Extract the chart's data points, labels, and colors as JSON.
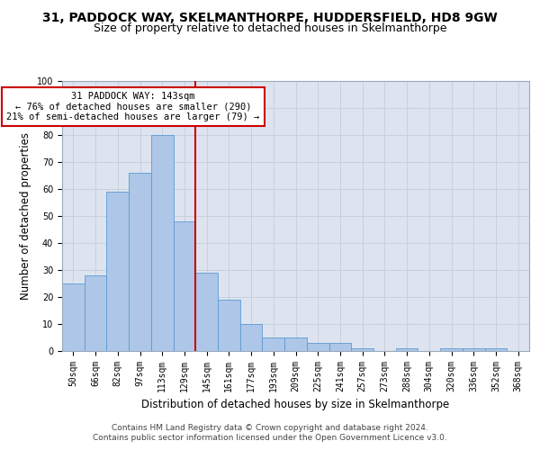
{
  "title_line1": "31, PADDOCK WAY, SKELMANTHORPE, HUDDERSFIELD, HD8 9GW",
  "title_line2": "Size of property relative to detached houses in Skelmanthorpe",
  "xlabel": "Distribution of detached houses by size in Skelmanthorpe",
  "ylabel": "Number of detached properties",
  "categories": [
    "50sqm",
    "66sqm",
    "82sqm",
    "97sqm",
    "113sqm",
    "129sqm",
    "145sqm",
    "161sqm",
    "177sqm",
    "193sqm",
    "209sqm",
    "225sqm",
    "241sqm",
    "257sqm",
    "273sqm",
    "288sqm",
    "304sqm",
    "320sqm",
    "336sqm",
    "352sqm",
    "368sqm"
  ],
  "values": [
    25,
    28,
    59,
    66,
    80,
    48,
    29,
    19,
    10,
    5,
    5,
    3,
    3,
    1,
    0,
    1,
    0,
    1,
    1,
    1,
    0
  ],
  "bar_color": "#aec6e8",
  "bar_edge_color": "#5b9bd5",
  "reference_line_color": "#cc0000",
  "annotation_text": "31 PADDOCK WAY: 143sqm\n← 76% of detached houses are smaller (290)\n21% of semi-detached houses are larger (79) →",
  "annotation_box_color": "#cc0000",
  "annotation_fill": "white",
  "ylim": [
    0,
    100
  ],
  "yticks": [
    0,
    10,
    20,
    30,
    40,
    50,
    60,
    70,
    80,
    90,
    100
  ],
  "grid_color": "#c8d0dc",
  "background_color": "#dde4ef",
  "footer_line1": "Contains HM Land Registry data © Crown copyright and database right 2024.",
  "footer_line2": "Contains public sector information licensed under the Open Government Licence v3.0.",
  "title_fontsize": 10,
  "subtitle_fontsize": 9,
  "axis_label_fontsize": 8.5,
  "tick_fontsize": 7,
  "annotation_fontsize": 7.5,
  "footer_fontsize": 6.5
}
